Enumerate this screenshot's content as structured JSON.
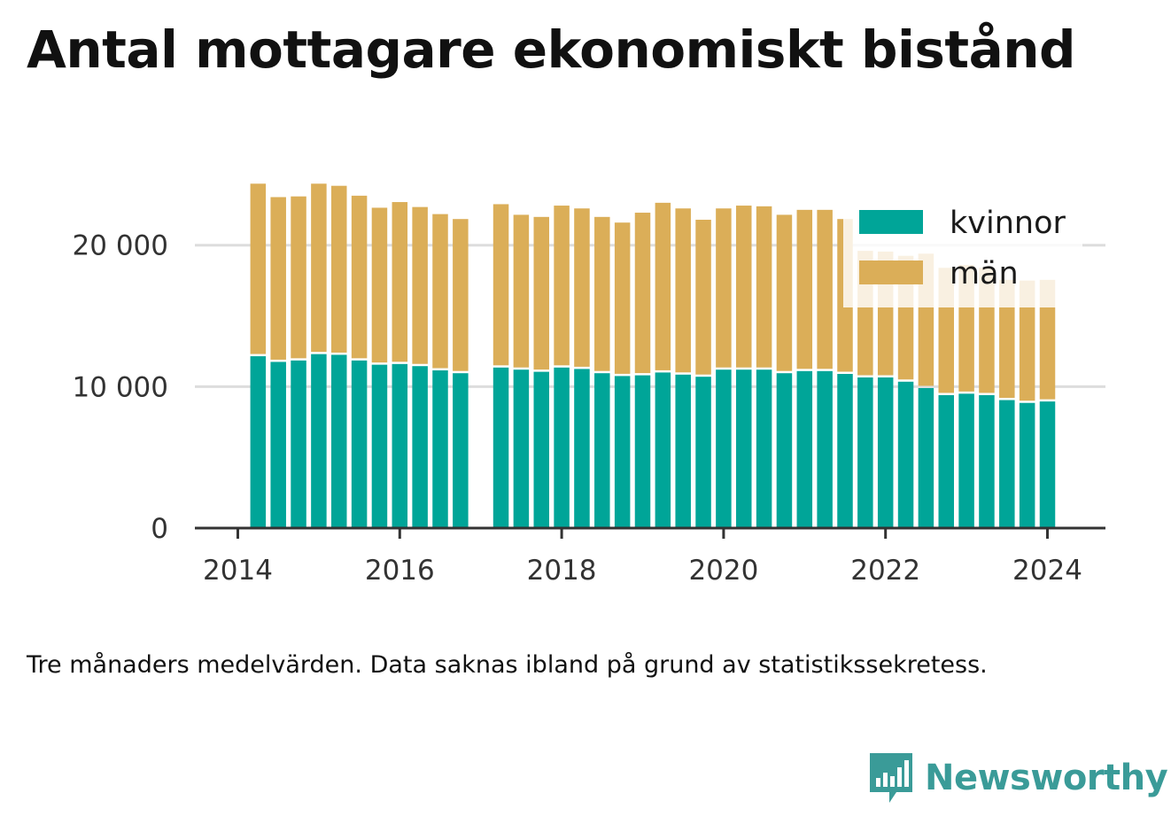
{
  "title": "Antal mottagare ekonomiskt bistånd",
  "note": "Tre månaders medelvärden. Data saknas ibland på grund av statistikssekretess.",
  "brand": {
    "name": "Newsworthy",
    "logo_icon": "newsworthy-bar-chart-icon"
  },
  "colors": {
    "kvinnor": "#00a598",
    "man": "#dbae58",
    "grid": "#dddddd",
    "axis": "#333333"
  },
  "chart_data": {
    "type": "bar",
    "stacked": true,
    "x_axis": {
      "ticks": [
        "2014",
        "2016",
        "2018",
        "2020",
        "2022",
        "2024"
      ],
      "range": [
        2013.5,
        2024.7
      ]
    },
    "y_axis": {
      "ticks": [
        "0",
        "10 000",
        "20 000"
      ],
      "tick_values": [
        0,
        10000,
        20000
      ],
      "range": [
        0,
        27000
      ]
    },
    "grid": true,
    "legend": {
      "position": "top-right",
      "entries": [
        "kvinnor",
        "män"
      ]
    },
    "series": [
      {
        "name": "kvinnor",
        "key": "kvinnor"
      },
      {
        "name": "män",
        "key": "man"
      }
    ],
    "points": [
      {
        "date": "2014-04",
        "kvinnor": 12150,
        "man": 12200
      },
      {
        "date": "2014-07",
        "kvinnor": 11750,
        "man": 11650
      },
      {
        "date": "2014-10",
        "kvinnor": 11850,
        "man": 11600
      },
      {
        "date": "2015-01",
        "kvinnor": 12300,
        "man": 12050
      },
      {
        "date": "2015-04",
        "kvinnor": 12250,
        "man": 11950
      },
      {
        "date": "2015-07",
        "kvinnor": 11850,
        "man": 11650
      },
      {
        "date": "2015-10",
        "kvinnor": 11550,
        "man": 11100
      },
      {
        "date": "2016-01",
        "kvinnor": 11600,
        "man": 11450
      },
      {
        "date": "2016-04",
        "kvinnor": 11450,
        "man": 11250
      },
      {
        "date": "2016-07",
        "kvinnor": 11150,
        "man": 11050
      },
      {
        "date": "2016-10",
        "kvinnor": 10950,
        "man": 10900
      },
      {
        "date": "2017-04",
        "kvinnor": 11350,
        "man": 11550
      },
      {
        "date": "2017-07",
        "kvinnor": 11200,
        "man": 10950
      },
      {
        "date": "2017-10",
        "kvinnor": 11050,
        "man": 10950
      },
      {
        "date": "2018-01",
        "kvinnor": 11350,
        "man": 11450
      },
      {
        "date": "2018-04",
        "kvinnor": 11250,
        "man": 11350
      },
      {
        "date": "2018-07",
        "kvinnor": 10950,
        "man": 11050
      },
      {
        "date": "2018-10",
        "kvinnor": 10750,
        "man": 10850
      },
      {
        "date": "2019-01",
        "kvinnor": 10800,
        "man": 11500
      },
      {
        "date": "2019-04",
        "kvinnor": 11000,
        "man": 12000
      },
      {
        "date": "2019-07",
        "kvinnor": 10850,
        "man": 11750
      },
      {
        "date": "2019-10",
        "kvinnor": 10700,
        "man": 11100
      },
      {
        "date": "2020-01",
        "kvinnor": 11200,
        "man": 11400
      },
      {
        "date": "2020-04",
        "kvinnor": 11200,
        "man": 11600
      },
      {
        "date": "2020-07",
        "kvinnor": 11200,
        "man": 11550
      },
      {
        "date": "2020-10",
        "kvinnor": 10950,
        "man": 11200
      },
      {
        "date": "2021-01",
        "kvinnor": 11100,
        "man": 11400
      },
      {
        "date": "2021-04",
        "kvinnor": 11100,
        "man": 11400
      },
      {
        "date": "2021-07",
        "kvinnor": 10900,
        "man": 10950
      },
      {
        "date": "2021-10",
        "kvinnor": 10650,
        "man": 8950
      },
      {
        "date": "2022-01",
        "kvinnor": 10650,
        "man": 8900
      },
      {
        "date": "2022-04",
        "kvinnor": 10350,
        "man": 8900
      },
      {
        "date": "2022-07",
        "kvinnor": 9900,
        "man": 9500
      },
      {
        "date": "2022-10",
        "kvinnor": 9400,
        "man": 9000
      },
      {
        "date": "2023-01",
        "kvinnor": 9500,
        "man": 9100
      },
      {
        "date": "2023-04",
        "kvinnor": 9400,
        "man": 9000
      },
      {
        "date": "2023-07",
        "kvinnor": 9050,
        "man": 8500
      },
      {
        "date": "2023-10",
        "kvinnor": 8850,
        "man": 8650
      },
      {
        "date": "2024-01",
        "kvinnor": 8950,
        "man": 8600
      }
    ]
  }
}
